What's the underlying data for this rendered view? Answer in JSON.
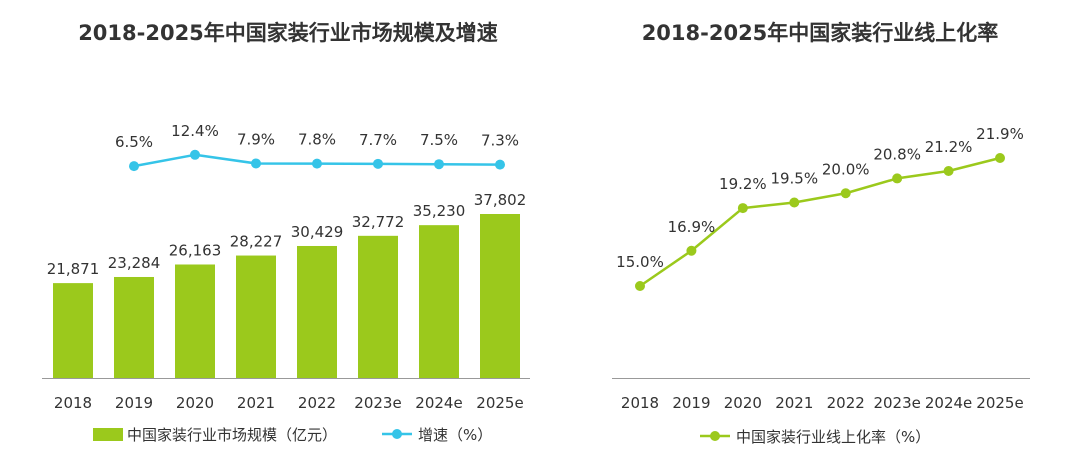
{
  "colors": {
    "bar": "#9BC91C",
    "growth_line": "#35C4E8",
    "online_line": "#9BC91C",
    "text": "#333333",
    "axis": "#999999"
  },
  "chart_data": [
    {
      "type": "bar",
      "title": "2018-2025年中国家装行业市场规模及增速",
      "categories": [
        "2018",
        "2019",
        "2020",
        "2021",
        "2022",
        "2023e",
        "2024e",
        "2025e"
      ],
      "series": [
        {
          "name": "中国家装行业市场规模（亿元）",
          "type": "bar",
          "values": [
            21871,
            23284,
            26163,
            28227,
            30429,
            32772,
            35230,
            37802
          ],
          "labels": [
            "21,871",
            "23,284",
            "26,163",
            "28,227",
            "30,429",
            "32,772",
            "35,230",
            "37,802"
          ]
        },
        {
          "name": "增速（%）",
          "type": "line",
          "x": [
            "2019",
            "2020",
            "2021",
            "2022",
            "2023e",
            "2024e",
            "2025e"
          ],
          "values": [
            6.5,
            12.4,
            7.9,
            7.8,
            7.7,
            7.5,
            7.3
          ],
          "labels": [
            "6.5%",
            "12.4%",
            "7.9%",
            "7.8%",
            "7.7%",
            "7.5%",
            "7.3%"
          ]
        }
      ],
      "legend": "bottom"
    },
    {
      "type": "line",
      "title": "2018-2025年中国家装行业线上化率",
      "categories": [
        "2018",
        "2019",
        "2020",
        "2021",
        "2022",
        "2023e",
        "2024e",
        "2025e"
      ],
      "series": [
        {
          "name": "中国家装行业线上化率（%）",
          "values": [
            15.0,
            16.9,
            19.2,
            19.5,
            20.0,
            20.8,
            21.2,
            21.9
          ],
          "labels": [
            "15.0%",
            "16.9%",
            "19.2%",
            "19.5%",
            "20.0%",
            "20.8%",
            "21.2%",
            "21.9%"
          ]
        }
      ],
      "legend": "bottom"
    }
  ]
}
